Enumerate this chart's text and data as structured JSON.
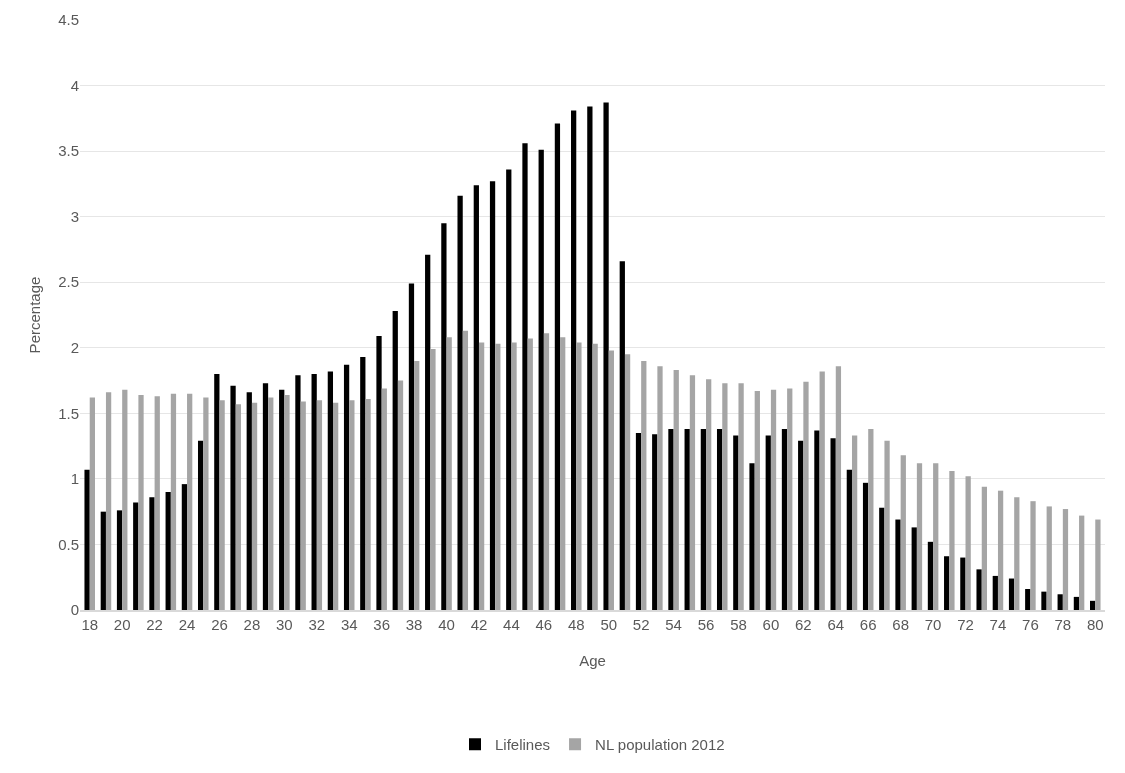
{
  "chart_data": {
    "type": "bar",
    "xlabel": "Age",
    "ylabel": "Percentage",
    "categories": [
      "18",
      null,
      "20",
      null,
      "22",
      null,
      "24",
      null,
      "26",
      null,
      "28",
      null,
      "30",
      null,
      "32",
      null,
      "34",
      null,
      "36",
      null,
      "38",
      null,
      "40",
      null,
      "42",
      null,
      "44",
      null,
      "46",
      null,
      "48",
      null,
      "50",
      null,
      "52",
      null,
      "54",
      null,
      "56",
      null,
      "58",
      null,
      "60",
      null,
      "62",
      null,
      "64",
      null,
      "66",
      null,
      "68",
      null,
      "70",
      null,
      "72",
      null,
      "74",
      null,
      "76",
      null,
      "78",
      null,
      "80"
    ],
    "series": [
      {
        "name": "Lifelines",
        "color": "#000000",
        "values": [
          1.07,
          0.75,
          0.76,
          0.82,
          0.86,
          0.9,
          0.96,
          1.29,
          1.8,
          1.71,
          1.66,
          1.73,
          1.68,
          1.79,
          1.8,
          1.82,
          1.87,
          1.93,
          2.09,
          2.28,
          2.49,
          2.71,
          2.95,
          3.16,
          3.24,
          3.27,
          3.36,
          3.56,
          3.51,
          3.71,
          3.81,
          3.84,
          3.87,
          2.66,
          1.35,
          1.34,
          1.38,
          1.38,
          1.38,
          1.38,
          1.33,
          1.12,
          1.33,
          1.38,
          1.29,
          1.37,
          1.31,
          1.07,
          0.97,
          0.78,
          0.69,
          0.63,
          0.52,
          0.41,
          0.4,
          0.31,
          0.26,
          0.24,
          0.16,
          0.14,
          0.12,
          0.1,
          0.07
        ]
      },
      {
        "name": "NL population 2012",
        "color": "#a5a5a5",
        "values": [
          1.62,
          1.66,
          1.68,
          1.64,
          1.63,
          1.65,
          1.65,
          1.62,
          1.6,
          1.57,
          1.58,
          1.62,
          1.64,
          1.59,
          1.6,
          1.58,
          1.6,
          1.61,
          1.69,
          1.75,
          1.9,
          1.99,
          2.08,
          2.13,
          2.04,
          2.03,
          2.04,
          2.07,
          2.11,
          2.08,
          2.04,
          2.03,
          1.98,
          1.95,
          1.9,
          1.86,
          1.83,
          1.79,
          1.76,
          1.73,
          1.73,
          1.67,
          1.68,
          1.69,
          1.74,
          1.82,
          1.86,
          1.33,
          1.38,
          1.29,
          1.18,
          1.12,
          1.12,
          1.06,
          1.02,
          0.94,
          0.91,
          0.86,
          0.83,
          0.79,
          0.77,
          0.72,
          0.69
        ]
      }
    ],
    "ylim": [
      0,
      4.5
    ],
    "yticks": [
      0,
      0.5,
      1,
      1.5,
      2,
      2.5,
      3,
      3.5,
      4,
      4.5
    ],
    "grid": "y",
    "legend": "bottom"
  }
}
